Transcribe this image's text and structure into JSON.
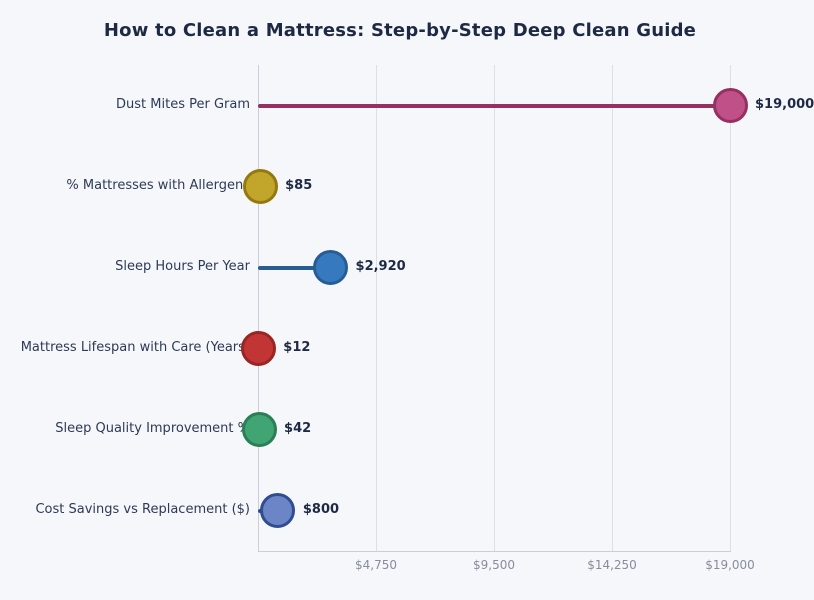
{
  "title": "How to Clean a Mattress: Step-by-Step Deep Clean Guide",
  "colors": {
    "background": "#f5f7fa",
    "grid": "#dcdfe6",
    "spine": "#c9ced7",
    "title_text": "#1e2a44",
    "category_text": "#2e3a55",
    "value_text": "#1e2a44",
    "tick_text": "#868d9d"
  },
  "chart_data": {
    "type": "bar",
    "subtype": "horizontal-lollipop",
    "title": "How to Clean a Mattress: Step-by-Step Deep Clean Guide",
    "categories": [
      "Dust Mites Per Gram",
      "% Mattresses with Allergens",
      "Sleep Hours Per Year",
      "Mattress Lifespan with Care (Years)",
      "Sleep Quality Improvement %",
      "Cost Savings vs Replacement ($)"
    ],
    "values": [
      19000,
      85,
      2920,
      12,
      42,
      800
    ],
    "value_labels": [
      "$19,000",
      "$85",
      "$2,920",
      "$12",
      "$42",
      "$800"
    ],
    "series_colors": [
      {
        "fill": "#bf5088",
        "stroke": "#963060"
      },
      {
        "fill": "#c2a62b",
        "stroke": "#94790f"
      },
      {
        "fill": "#3779be",
        "stroke": "#275d94"
      },
      {
        "fill": "#c23535",
        "stroke": "#9a2525"
      },
      {
        "fill": "#41a473",
        "stroke": "#2b7e55"
      },
      {
        "fill": "#6b85c7",
        "stroke": "#2f4d8f"
      }
    ],
    "xlabel": "",
    "ylabel": "",
    "xlim": [
      0,
      19000
    ],
    "xticks": [
      {
        "value": 4750,
        "label": "$4,750"
      },
      {
        "value": 9500,
        "label": "$9,500"
      },
      {
        "value": 14250,
        "label": "$14,250"
      },
      {
        "value": 19000,
        "label": "$19,000"
      }
    ],
    "grid": true,
    "legend": false
  }
}
